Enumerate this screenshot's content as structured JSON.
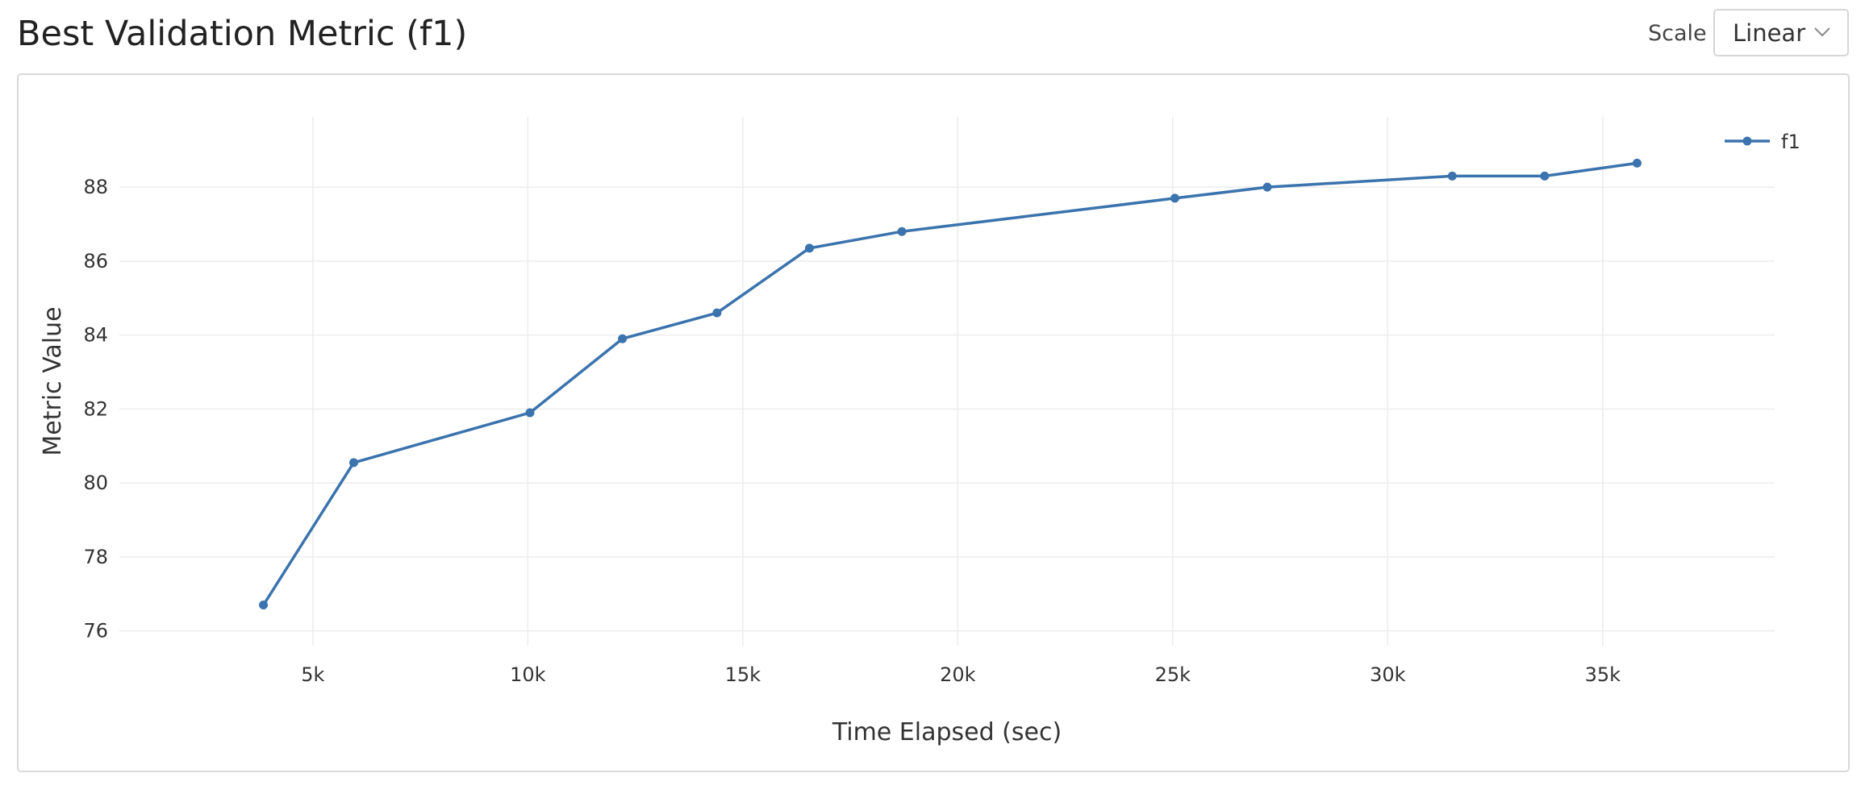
{
  "header": {
    "title": "Best Validation Metric (f1)",
    "scale_label": "Scale",
    "scale_value": "Linear"
  },
  "chart_data": {
    "type": "line",
    "title": "",
    "xlabel": "Time Elapsed (sec)",
    "ylabel": "Metric Value",
    "xlim": [
      500,
      39000
    ],
    "ylim": [
      75.6,
      89.9
    ],
    "xticks": [
      5000,
      10000,
      15000,
      20000,
      25000,
      30000,
      35000
    ],
    "xtick_labels": [
      "5k",
      "10k",
      "15k",
      "20k",
      "25k",
      "30k",
      "35k"
    ],
    "yticks": [
      76,
      78,
      80,
      82,
      84,
      86,
      88
    ],
    "ytick_labels": [
      "76",
      "78",
      "80",
      "82",
      "84",
      "86",
      "88"
    ],
    "grid": true,
    "legend_position": "top-right",
    "series": [
      {
        "name": "f1",
        "color": "#3a73ad",
        "x": [
          3850,
          5950,
          10050,
          12200,
          14400,
          16550,
          18700,
          25050,
          27200,
          31500,
          33650,
          35800
        ],
        "y": [
          76.7,
          80.55,
          81.9,
          83.9,
          84.6,
          86.35,
          86.8,
          87.7,
          88.0,
          88.3,
          88.3,
          88.65
        ]
      }
    ]
  }
}
